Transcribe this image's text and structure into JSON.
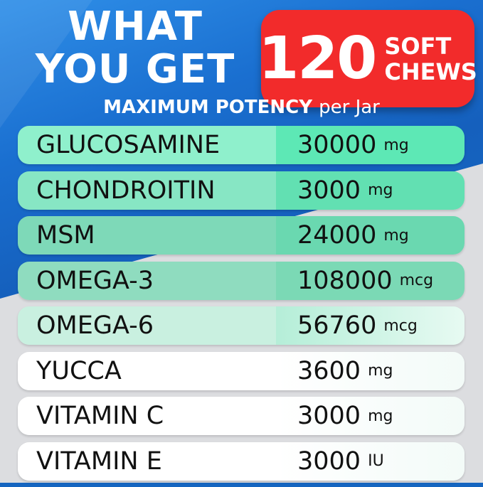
{
  "header": {
    "title_line1": "WHAT",
    "title_line2": "YOU GET",
    "badge_number": "120",
    "badge_unit_line1": "SOFT",
    "badge_unit_line2": "CHEWS",
    "subtitle_bold": "MAXIMUM POTENCY",
    "subtitle_small": "per Jar"
  },
  "colors": {
    "background": "#1565c0",
    "badge": "#f22b2b",
    "row_green": "#5de8b5"
  },
  "rows": [
    {
      "name": "GLUCOSAMINE",
      "amount": "30000",
      "unit": "mg"
    },
    {
      "name": "CHONDROITIN",
      "amount": "3000",
      "unit": "mg"
    },
    {
      "name": "MSM",
      "amount": "24000",
      "unit": "mg"
    },
    {
      "name": "OMEGA-3",
      "amount": "108000",
      "unit": "mcg"
    },
    {
      "name": "OMEGA-6",
      "amount": "56760",
      "unit": "mcg"
    },
    {
      "name": "YUCCA",
      "amount": "3600",
      "unit": "mg"
    },
    {
      "name": "VITAMIN C",
      "amount": "3000",
      "unit": "mg"
    },
    {
      "name": "VITAMIN E",
      "amount": "3000",
      "unit": "IU"
    }
  ]
}
